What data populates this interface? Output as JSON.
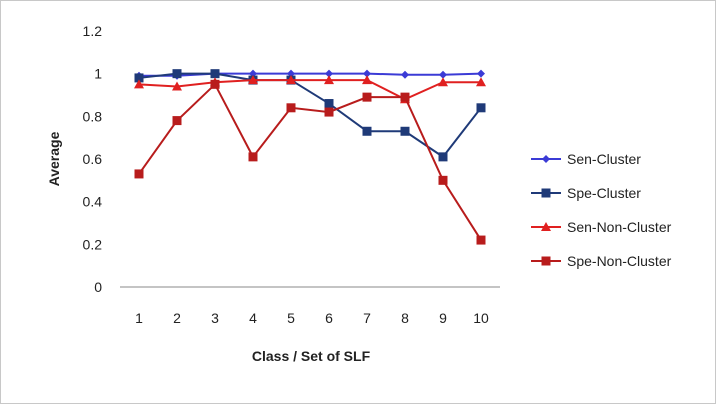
{
  "chart_data": {
    "type": "line",
    "title": "",
    "xlabel": "Class / Set of SLF",
    "ylabel": "Average",
    "x": [
      1,
      2,
      3,
      4,
      5,
      6,
      7,
      8,
      9,
      10
    ],
    "ylim": [
      0,
      1.2
    ],
    "yticks": [
      0,
      0.2,
      0.4,
      0.6,
      0.8,
      1,
      1.2
    ],
    "grid": false,
    "legend_position": "right",
    "series": [
      {
        "name": "Sen-Cluster",
        "values": [
          0.99,
          0.99,
          1.0,
          1.0,
          1.0,
          1.0,
          1.0,
          0.995,
          0.995,
          1.0
        ],
        "color": "#3b3bd6",
        "marker": "diamond"
      },
      {
        "name": "Spe-Cluster",
        "values": [
          0.98,
          1.0,
          1.0,
          0.97,
          0.97,
          0.86,
          0.73,
          0.73,
          0.61,
          0.84
        ],
        "color": "#1f3a78",
        "marker": "square"
      },
      {
        "name": "Sen-Non-Cluster",
        "values": [
          0.95,
          0.94,
          0.96,
          0.97,
          0.97,
          0.97,
          0.97,
          0.88,
          0.96,
          0.96
        ],
        "color": "#e02020",
        "marker": "triangle"
      },
      {
        "name": "Spe-Non-Cluster",
        "values": [
          0.53,
          0.78,
          0.95,
          0.61,
          0.84,
          0.82,
          0.89,
          0.89,
          0.5,
          0.22
        ],
        "color": "#b81c1c",
        "marker": "square"
      }
    ]
  }
}
